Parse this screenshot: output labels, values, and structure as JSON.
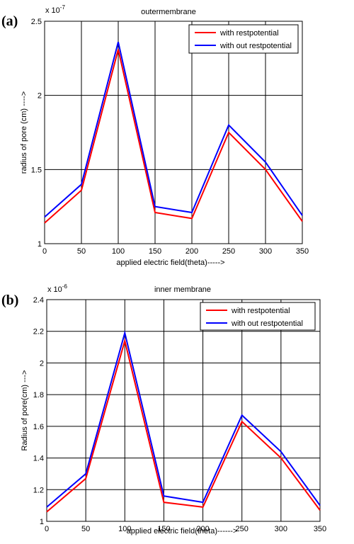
{
  "chart_data": [
    {
      "panel_label": "(a)",
      "type": "line",
      "title": "outermembrane",
      "xlabel": "applied electric field(theta)----->",
      "ylabel": "radius of pore (cm) ---->",
      "exponent": "x 10",
      "exponent_power": "-7",
      "x": [
        0,
        50,
        100,
        150,
        200,
        250,
        300,
        350
      ],
      "xlim": [
        0,
        350
      ],
      "ylim": [
        1,
        2.5
      ],
      "xticks": [
        "0",
        "50",
        "100",
        "150",
        "200",
        "250",
        "300",
        "350"
      ],
      "yticks": [
        "1",
        "1.5",
        "2",
        "2.5"
      ],
      "yticks_values": [
        1,
        1.5,
        2,
        2.5
      ],
      "grid": true,
      "legend_position": "top-right",
      "series": [
        {
          "name": "with restpotential",
          "color": "#ff0000",
          "values": [
            1.14,
            1.36,
            2.31,
            1.21,
            1.17,
            1.75,
            1.5,
            1.15
          ]
        },
        {
          "name": "with  out restpotential",
          "color": "#0000ff",
          "values": [
            1.18,
            1.4,
            2.36,
            1.25,
            1.21,
            1.8,
            1.55,
            1.19
          ]
        }
      ]
    },
    {
      "panel_label": "(b)",
      "type": "line",
      "title": "inner membrane",
      "xlabel": "applied electric field(theta)------>",
      "ylabel": "Radius of pore(cm) --->",
      "exponent": "x 10",
      "exponent_power": "-6",
      "x": [
        0,
        50,
        100,
        150,
        200,
        250,
        300,
        350
      ],
      "xlim": [
        0,
        350
      ],
      "ylim": [
        1,
        2.4
      ],
      "xticks": [
        "0",
        "50",
        "100",
        "150",
        "200",
        "250",
        "300",
        "350"
      ],
      "yticks": [
        "1",
        "1.2",
        "1.4",
        "1.6",
        "1.8",
        "2",
        "2.2",
        "2.4"
      ],
      "yticks_values": [
        1,
        1.2,
        1.4,
        1.6,
        1.8,
        2.0,
        2.2,
        2.4
      ],
      "grid": true,
      "legend_position": "top-right",
      "series": [
        {
          "name": "with restpotential",
          "color": "#ff0000",
          "values": [
            1.06,
            1.27,
            2.14,
            1.12,
            1.09,
            1.63,
            1.4,
            1.07
          ]
        },
        {
          "name": "with  out restpotential",
          "color": "#0000ff",
          "values": [
            1.09,
            1.3,
            2.19,
            1.16,
            1.12,
            1.67,
            1.44,
            1.1
          ]
        }
      ]
    }
  ]
}
